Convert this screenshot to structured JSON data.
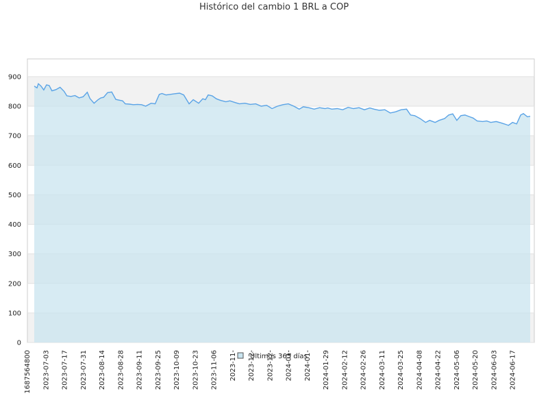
{
  "chart_data": {
    "type": "area",
    "title": "Histórico del cambio 1 BRL a COP",
    "xlabel": "",
    "ylabel": "",
    "ylim": [
      0,
      960
    ],
    "y_ticks": [
      0,
      100,
      200,
      300,
      400,
      500,
      600,
      700,
      800,
      900
    ],
    "x_tick_labels": [
      "1687564800",
      "2023-07-03",
      "2023-07-17",
      "2023-07-31",
      "2023-08-14",
      "2023-08-28",
      "2023-09-11",
      "2023-09-25",
      "2023-10-09",
      "2023-10-23",
      "2023-11-06",
      "2023-11-",
      "2023-12-",
      "2023-12-",
      "2024-01-",
      "2024-01-",
      "2024-01-29",
      "2024-02-12",
      "2024-02-26",
      "2024-03-11",
      "2024-03-25",
      "2024-04-08",
      "2024-04-22",
      "2024-05-06",
      "2024-05-20",
      "2024-06-03",
      "2024-06-17"
    ],
    "grid": true,
    "legend": "bottom-center",
    "series": [
      {
        "name": "Últimos 365 días",
        "line_color": "#5aa3e6",
        "fill_color": "#c9e4ef",
        "x": [
          "2023-06-24",
          "2023-06-26",
          "2023-06-27",
          "2023-06-29",
          "2023-07-01",
          "2023-07-03",
          "2023-07-05",
          "2023-07-07",
          "2023-07-10",
          "2023-07-13",
          "2023-07-16",
          "2023-07-18",
          "2023-07-21",
          "2023-07-24",
          "2023-07-27",
          "2023-07-30",
          "2023-08-02",
          "2023-08-04",
          "2023-08-07",
          "2023-08-10",
          "2023-08-12",
          "2023-08-14",
          "2023-08-17",
          "2023-08-20",
          "2023-08-23",
          "2023-08-26",
          "2023-08-28",
          "2023-08-30",
          "2023-09-02",
          "2023-09-05",
          "2023-09-08",
          "2023-09-11",
          "2023-09-14",
          "2023-09-18",
          "2023-09-21",
          "2023-09-24",
          "2023-09-26",
          "2023-09-29",
          "2023-10-02",
          "2023-10-05",
          "2023-10-09",
          "2023-10-12",
          "2023-10-16",
          "2023-10-19",
          "2023-10-23",
          "2023-10-26",
          "2023-10-28",
          "2023-10-30",
          "2023-11-02",
          "2023-11-05",
          "2023-11-08",
          "2023-11-12",
          "2023-11-15",
          "2023-11-19",
          "2023-11-22",
          "2023-11-26",
          "2023-11-30",
          "2023-12-04",
          "2023-12-08",
          "2023-12-12",
          "2023-12-16",
          "2023-12-20",
          "2023-12-24",
          "2023-12-28",
          "2024-01-01",
          "2024-01-05",
          "2024-01-08",
          "2024-01-12",
          "2024-01-16",
          "2024-01-20",
          "2024-01-24",
          "2024-01-26",
          "2024-01-29",
          "2024-02-02",
          "2024-02-06",
          "2024-02-10",
          "2024-02-14",
          "2024-02-18",
          "2024-02-22",
          "2024-02-26",
          "2024-02-29",
          "2024-03-04",
          "2024-03-08",
          "2024-03-12",
          "2024-03-16",
          "2024-03-20",
          "2024-03-24",
          "2024-03-27",
          "2024-03-30",
          "2024-04-03",
          "2024-04-07",
          "2024-04-10",
          "2024-04-14",
          "2024-04-17",
          "2024-04-21",
          "2024-04-24",
          "2024-04-27",
          "2024-04-30",
          "2024-05-03",
          "2024-05-06",
          "2024-05-09",
          "2024-05-12",
          "2024-05-15",
          "2024-05-19",
          "2024-05-22",
          "2024-05-25",
          "2024-05-29",
          "2024-06-01",
          "2024-06-04",
          "2024-06-07",
          "2024-06-10",
          "2024-06-13",
          "2024-06-16",
          "2024-06-18",
          "2024-06-21",
          "2024-06-23"
        ],
        "y": [
          868,
          862,
          876,
          868,
          855,
          872,
          870,
          852,
          856,
          864,
          850,
          835,
          833,
          836,
          828,
          832,
          847,
          826,
          810,
          822,
          828,
          830,
          846,
          848,
          823,
          820,
          818,
          808,
          807,
          805,
          806,
          805,
          800,
          810,
          808,
          840,
          843,
          838,
          840,
          842,
          844,
          838,
          808,
          822,
          810,
          825,
          822,
          838,
          835,
          825,
          820,
          815,
          818,
          812,
          808,
          810,
          806,
          808,
          800,
          803,
          792,
          800,
          805,
          808,
          800,
          790,
          798,
          795,
          790,
          795,
          792,
          794,
          790,
          792,
          788,
          796,
          792,
          795,
          788,
          794,
          790,
          786,
          788,
          777,
          781,
          788,
          790,
          770,
          768,
          758,
          745,
          752,
          745,
          752,
          758,
          770,
          774,
          752,
          768,
          770,
          765,
          760,
          750,
          748,
          750,
          745,
          748,
          744,
          740,
          735,
          745,
          740,
          770,
          775,
          764,
          766
        ]
      }
    ]
  }
}
